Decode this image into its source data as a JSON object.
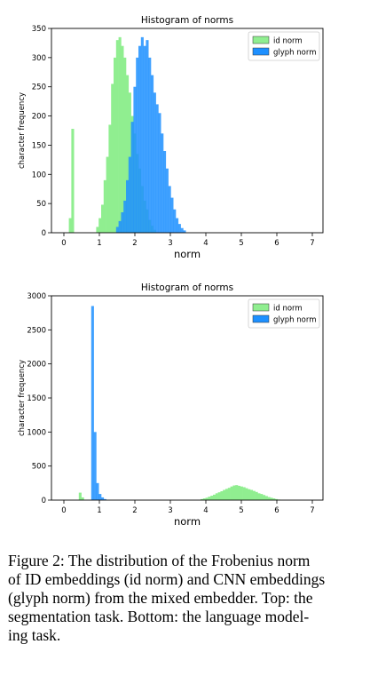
{
  "chart_data": [
    {
      "type": "histogram",
      "title": "Histogram of norms",
      "xlabel": "norm",
      "ylabel": "character frequency",
      "xlim": [
        -0.35,
        7.3
      ],
      "ylim": [
        0,
        350
      ],
      "xticks": [
        0,
        1,
        2,
        3,
        4,
        5,
        6,
        7
      ],
      "yticks": [
        0,
        50,
        100,
        150,
        200,
        250,
        300,
        350
      ],
      "legend": "top-right",
      "series": [
        {
          "name": "id norm",
          "color": "#90ee90",
          "bin_width": 0.07,
          "bins": [
            [
              0.14,
              25
            ],
            [
              0.21,
              178
            ],
            [
              0.91,
              10
            ],
            [
              0.98,
              25
            ],
            [
              1.05,
              48
            ],
            [
              1.12,
              90
            ],
            [
              1.19,
              130
            ],
            [
              1.26,
              185
            ],
            [
              1.33,
              255
            ],
            [
              1.4,
              300
            ],
            [
              1.47,
              330
            ],
            [
              1.54,
              335
            ],
            [
              1.61,
              320
            ],
            [
              1.68,
              300
            ],
            [
              1.75,
              270
            ],
            [
              1.82,
              240
            ],
            [
              1.89,
              200
            ],
            [
              1.96,
              170
            ],
            [
              2.03,
              135
            ],
            [
              2.1,
              110
            ],
            [
              2.17,
              80
            ],
            [
              2.24,
              55
            ],
            [
              2.31,
              40
            ],
            [
              2.38,
              22
            ],
            [
              2.45,
              12
            ],
            [
              2.52,
              5
            ]
          ]
        },
        {
          "name": "glyph norm",
          "color": "#1e90ff",
          "bin_width": 0.07,
          "bins": [
            [
              1.47,
              10
            ],
            [
              1.54,
              20
            ],
            [
              1.61,
              35
            ],
            [
              1.68,
              55
            ],
            [
              1.75,
              90
            ],
            [
              1.82,
              130
            ],
            [
              1.89,
              190
            ],
            [
              1.96,
              250
            ],
            [
              2.03,
              300
            ],
            [
              2.1,
              320
            ],
            [
              2.17,
              335
            ],
            [
              2.24,
              320
            ],
            [
              2.31,
              330
            ],
            [
              2.38,
              300
            ],
            [
              2.45,
              270
            ],
            [
              2.52,
              240
            ],
            [
              2.59,
              220
            ],
            [
              2.66,
              205
            ],
            [
              2.73,
              170
            ],
            [
              2.8,
              140
            ],
            [
              2.87,
              110
            ],
            [
              2.94,
              80
            ],
            [
              3.01,
              60
            ],
            [
              3.08,
              40
            ],
            [
              3.15,
              25
            ],
            [
              3.22,
              15
            ],
            [
              3.29,
              8
            ],
            [
              3.36,
              4
            ]
          ]
        }
      ]
    },
    {
      "type": "histogram",
      "title": "Histogram of norms",
      "xlabel": "norm",
      "ylabel": "character frequency",
      "xlim": [
        -0.35,
        7.3
      ],
      "ylim": [
        0,
        3000
      ],
      "xticks": [
        0,
        1,
        2,
        3,
        4,
        5,
        6,
        7
      ],
      "yticks": [
        0,
        500,
        1000,
        1500,
        2000,
        2500,
        3000
      ],
      "legend": "top-right",
      "series": [
        {
          "name": "id norm",
          "color": "#90ee90",
          "bin_width": 0.07,
          "bins": [
            [
              0.42,
              110
            ],
            [
              0.49,
              40
            ],
            [
              3.85,
              15
            ],
            [
              3.92,
              25
            ],
            [
              3.99,
              35
            ],
            [
              4.06,
              50
            ],
            [
              4.13,
              65
            ],
            [
              4.2,
              80
            ],
            [
              4.27,
              100
            ],
            [
              4.34,
              115
            ],
            [
              4.41,
              130
            ],
            [
              4.48,
              150
            ],
            [
              4.55,
              165
            ],
            [
              4.62,
              180
            ],
            [
              4.69,
              200
            ],
            [
              4.76,
              215
            ],
            [
              4.83,
              220
            ],
            [
              4.9,
              210
            ],
            [
              4.97,
              200
            ],
            [
              5.04,
              190
            ],
            [
              5.11,
              175
            ],
            [
              5.18,
              160
            ],
            [
              5.25,
              150
            ],
            [
              5.32,
              135
            ],
            [
              5.39,
              120
            ],
            [
              5.46,
              100
            ],
            [
              5.53,
              90
            ],
            [
              5.6,
              75
            ],
            [
              5.67,
              60
            ],
            [
              5.74,
              45
            ],
            [
              5.81,
              35
            ],
            [
              5.88,
              25
            ],
            [
              5.95,
              15
            ],
            [
              6.02,
              8
            ]
          ]
        },
        {
          "name": "glyph norm",
          "color": "#1e90ff",
          "bin_width": 0.07,
          "bins": [
            [
              0.77,
              2850
            ],
            [
              0.84,
              1000
            ],
            [
              0.91,
              250
            ],
            [
              0.98,
              90
            ],
            [
              1.05,
              40
            ],
            [
              1.12,
              15
            ]
          ]
        }
      ]
    }
  ],
  "caption": {
    "lines": [
      "Figure 2:  The distribution of the Frobenius norm",
      "of ID embeddings (id norm) and CNN embeddings",
      "(glyph norm) from the mixed embedder.  Top: the",
      "segmentation task.  Bottom:  the language model-",
      "ing task."
    ]
  }
}
